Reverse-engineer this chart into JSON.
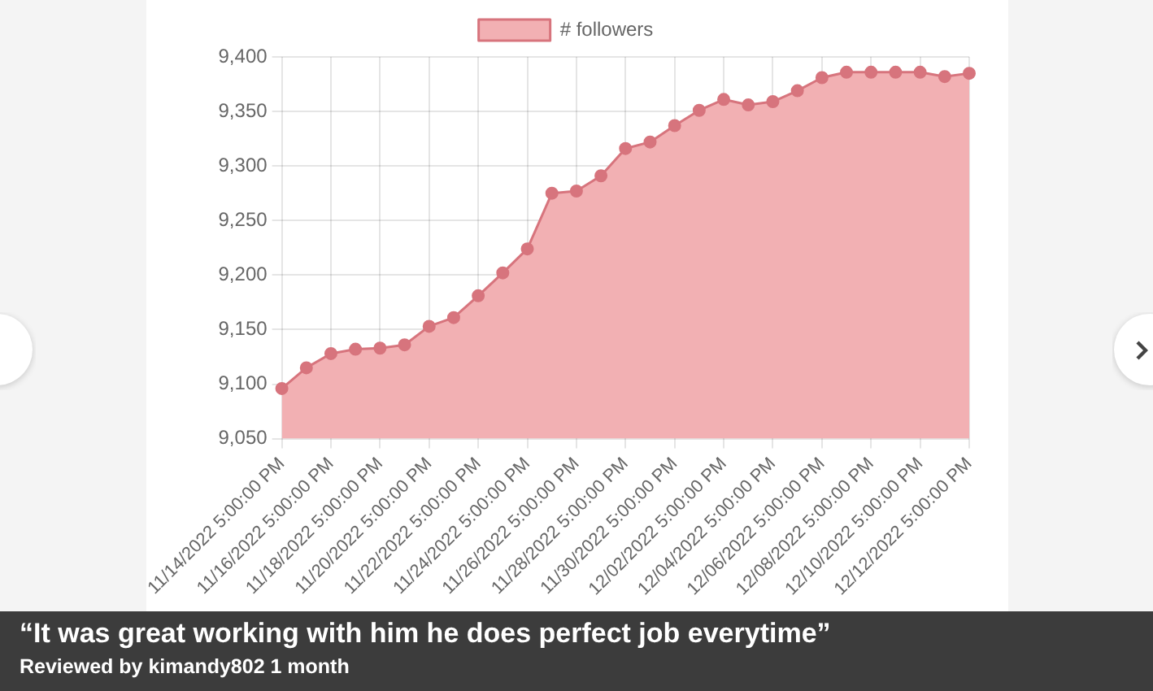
{
  "chart_data": {
    "type": "area",
    "categories": [
      "11/14/2022 5:00:00 PM",
      null,
      "11/16/2022 5:00:00 PM",
      null,
      "11/18/2022 5:00:00 PM",
      null,
      "11/20/2022 5:00:00 PM",
      null,
      "11/22/2022 5:00:00 PM",
      null,
      "11/24/2022 5:00:00 PM",
      null,
      "11/26/2022 5:00:00 PM",
      null,
      "11/28/2022 5:00:00 PM",
      null,
      "11/30/2022 5:00:00 PM",
      null,
      "12/02/2022 5:00:00 PM",
      null,
      "12/04/2022 5:00:00 PM",
      null,
      "12/06/2022 5:00:00 PM",
      null,
      "12/08/2022 5:00:00 PM",
      null,
      "12/10/2022 5:00:00 PM",
      null,
      "12/12/2022 5:00:00 PM"
    ],
    "series": [
      {
        "name": "# followers",
        "color": "#f2b0b3",
        "values": [
          9096,
          9115,
          9128,
          9132,
          9133,
          9136,
          9153,
          9161,
          9181,
          9202,
          9224,
          9275,
          9277,
          9291,
          9316,
          9322,
          9337,
          9351,
          9361,
          9356,
          9359,
          9369,
          9381,
          9386,
          9386,
          9386,
          9386,
          9382,
          9385
        ]
      }
    ],
    "ylim": [
      9050,
      9400
    ],
    "yticks": [
      {
        "value": 9050,
        "label": "9,050"
      },
      {
        "value": 9100,
        "label": "9,100"
      },
      {
        "value": 9150,
        "label": "9,150"
      },
      {
        "value": 9200,
        "label": "9,200"
      },
      {
        "value": 9250,
        "label": "9,250"
      },
      {
        "value": 9300,
        "label": "9,300"
      },
      {
        "value": 9350,
        "label": "9,350"
      },
      {
        "value": 9400,
        "label": "9,400"
      }
    ],
    "grid": true,
    "legend": "top",
    "marker": "circle",
    "line_style": "solid",
    "annotations": [
      "“It was great working with him he does perfect job everytime”",
      "Reviewed by kimandy802 1 month"
    ]
  }
}
